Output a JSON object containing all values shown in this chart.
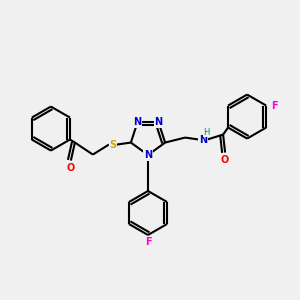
{
  "bg_color": "#f0f0f0",
  "bond_color": "#000000",
  "bond_width": 1.5,
  "atom_colors": {
    "N": "#0000cc",
    "O": "#ff0000",
    "S": "#ccaa00",
    "F": "#ff00cc",
    "H": "#008888",
    "C": "#000000"
  },
  "figsize": [
    3.0,
    3.0
  ],
  "dpi": 100
}
